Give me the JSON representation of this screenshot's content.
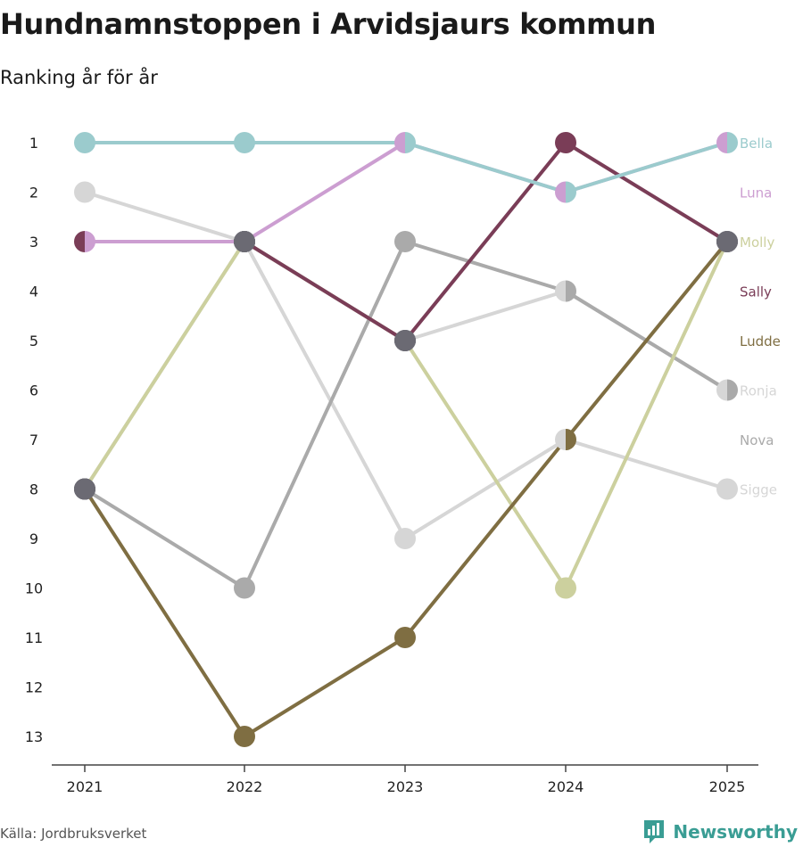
{
  "header": {
    "title": "Hundnamnstoppen i Arvidsjaurs kommun",
    "subtitle": "Ranking år för år"
  },
  "footer": {
    "source": "Källa: Jordbruksverket",
    "brand": "Newsworthy"
  },
  "colors": {
    "Bella": "#9bcbcd",
    "Luna": "#cc9ed1",
    "Molly": "#ccd09e",
    "Sally": "#7a3d57",
    "Ludde": "#7f6e42",
    "Ronja": "#d6d6d6",
    "Nova": "#aaaaaa",
    "Sigge": "#d6d6d6",
    "overlap": "#6b6a73",
    "axis": "#444444",
    "brand": "#3a9d94"
  },
  "chart_data": {
    "type": "line",
    "title": "Hundnamnstoppen i Arvidsjaurs kommun",
    "subtitle": "Ranking år för år",
    "x": [
      "2021",
      "2022",
      "2023",
      "2024",
      "2025"
    ],
    "y_ticks": [
      "1",
      "2",
      "3",
      "4",
      "5",
      "6",
      "7",
      "8",
      "9",
      "10",
      "11",
      "12",
      "13"
    ],
    "ylim": [
      1,
      13
    ],
    "y_inverted": true,
    "series": [
      {
        "name": "Bella",
        "values": [
          1,
          1,
          1,
          2,
          1
        ]
      },
      {
        "name": "Luna",
        "values": [
          3,
          3,
          1,
          2,
          1
        ]
      },
      {
        "name": "Molly",
        "values": [
          8,
          3,
          5,
          10,
          3
        ]
      },
      {
        "name": "Sally",
        "values": [
          3,
          3,
          5,
          1,
          3
        ]
      },
      {
        "name": "Ludde",
        "values": [
          8,
          13,
          11,
          7,
          3
        ]
      },
      {
        "name": "Ronja",
        "values": [
          2,
          3,
          5,
          4,
          6
        ]
      },
      {
        "name": "Nova",
        "values": [
          8,
          10,
          3,
          4,
          6
        ]
      },
      {
        "name": "Sigge",
        "values": [
          8,
          3,
          9,
          7,
          8
        ]
      }
    ],
    "labels": [
      "Bella",
      "Luna",
      "Molly",
      "Sally",
      "Ludde",
      "Ronja",
      "Nova",
      "Sigge"
    ],
    "label_ranks": [
      1,
      2,
      3,
      4,
      5,
      6,
      7,
      8
    ]
  }
}
